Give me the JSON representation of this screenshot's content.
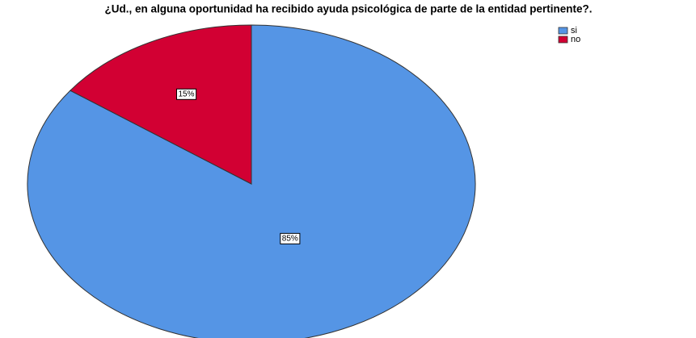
{
  "chart_data": {
    "type": "pie",
    "title": "¿Ud., en alguna oportunidad ha recibido ayuda psicológica de parte de la entidad pertinente?.",
    "categories": [
      "si",
      "no"
    ],
    "values": [
      85,
      15
    ],
    "value_labels": [
      "85%",
      "15%"
    ],
    "colors": [
      "#5595e5",
      "#d20033"
    ],
    "legend": "top-right"
  }
}
